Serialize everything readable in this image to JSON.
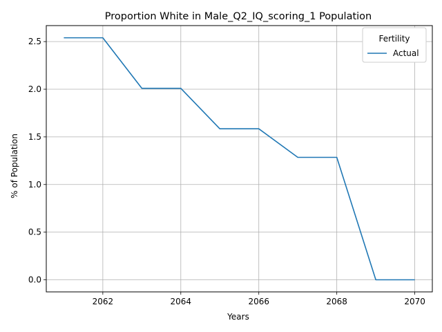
{
  "chart_data": {
    "type": "line",
    "title": "Proportion White in Male_Q2_IQ_scoring_1 Population",
    "xlabel": "Years",
    "ylabel": "% of Population",
    "xlim": [
      2060.55,
      2070.45
    ],
    "ylim": [
      -0.127,
      2.668
    ],
    "xticks": [
      2062,
      2064,
      2066,
      2068,
      2070
    ],
    "yticks": [
      0.0,
      0.5,
      1.0,
      1.5,
      2.0,
      2.5
    ],
    "grid": true,
    "legend": {
      "title": "Fertility",
      "placement": "top-right"
    },
    "series": [
      {
        "name": "Actual",
        "color": "#1f77b4",
        "x": [
          2061,
          2062,
          2063,
          2064,
          2065,
          2066,
          2067,
          2068,
          2069,
          2070
        ],
        "y": [
          2.54,
          2.54,
          2.01,
          2.01,
          1.585,
          1.585,
          1.285,
          1.285,
          0.0,
          0.0
        ]
      }
    ]
  }
}
